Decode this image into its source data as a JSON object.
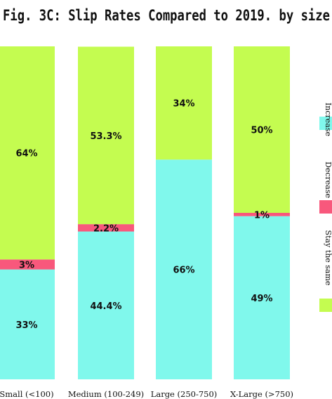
{
  "chart_data": {
    "type": "bar",
    "stacked": true,
    "normalized": true,
    "title": "Fig. 3C: Slip Rates Compared to 2019. by size",
    "xlabel": "",
    "ylabel": "",
    "ylim": [
      0,
      100
    ],
    "grid": false,
    "legend_position": "right",
    "categories": [
      "Small (<100)",
      "Medium (100-249)",
      "Large (250-750)",
      "X-Large (>750)"
    ],
    "series": [
      {
        "name": "Increase",
        "color": "#80F8EC",
        "values": [
          33,
          44.4,
          66,
          49
        ],
        "labels": [
          "33%",
          "44.4%",
          "66%",
          "49%"
        ]
      },
      {
        "name": "Decrease",
        "color": "#F8587C",
        "values": [
          3,
          2.2,
          0,
          1
        ],
        "labels": [
          "3%",
          "2.2%",
          "",
          "1%"
        ]
      },
      {
        "name": "Stay the same",
        "color": "#C4FC50",
        "values": [
          64,
          53.3,
          34,
          50
        ],
        "labels": [
          "64%",
          "53.3%",
          "34%",
          "50%"
        ]
      }
    ]
  }
}
